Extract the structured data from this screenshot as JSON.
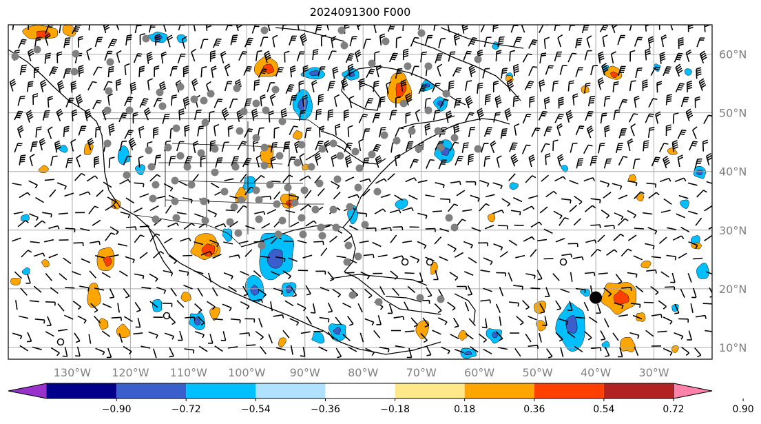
{
  "title": "2024091300 F000",
  "map": {
    "lon_range": [
      -141,
      -20
    ],
    "lat_range": [
      8,
      65
    ],
    "lat_ticks": [
      {
        "value": 60,
        "label": "60°N"
      },
      {
        "value": 50,
        "label": "50°N"
      },
      {
        "value": 40,
        "label": "40°N"
      },
      {
        "value": 30,
        "label": "30°N"
      },
      {
        "value": 20,
        "label": "20°N"
      },
      {
        "value": 10,
        "label": "10°N"
      }
    ],
    "lon_ticks": [
      {
        "value": -130,
        "label": "130°W"
      },
      {
        "value": -120,
        "label": "120°W"
      },
      {
        "value": -110,
        "label": "110°W"
      },
      {
        "value": -100,
        "label": "100°W"
      },
      {
        "value": -90,
        "label": "90°W"
      },
      {
        "value": -80,
        "label": "80°W"
      },
      {
        "value": -70,
        "label": "70°W"
      },
      {
        "value": -60,
        "label": "60°W"
      },
      {
        "value": -50,
        "label": "50°W"
      },
      {
        "value": -40,
        "label": "40°W"
      },
      {
        "value": -30,
        "label": "30°W"
      }
    ],
    "grid": true,
    "storm_center": {
      "lon": -40,
      "lat": 18.5
    },
    "colors": {
      "gridline": "#aaaaaa",
      "coast": "#000000",
      "station": "#808080",
      "barb": "#000000"
    }
  },
  "colorbar": {
    "colors": [
      "#9932cc",
      "#00008b",
      "#3a5fcd",
      "#00bfff",
      "#b0e2ff",
      "#ffffff",
      "#ffe88a",
      "#ffa500",
      "#ff4000",
      "#b22222",
      "#ff82ab"
    ],
    "labels": [
      "−0.90",
      "−0.72",
      "−0.54",
      "−0.36",
      "−0.18",
      "0.18",
      "0.36",
      "0.54",
      "0.72",
      "0.90"
    ],
    "extend": "both"
  }
}
